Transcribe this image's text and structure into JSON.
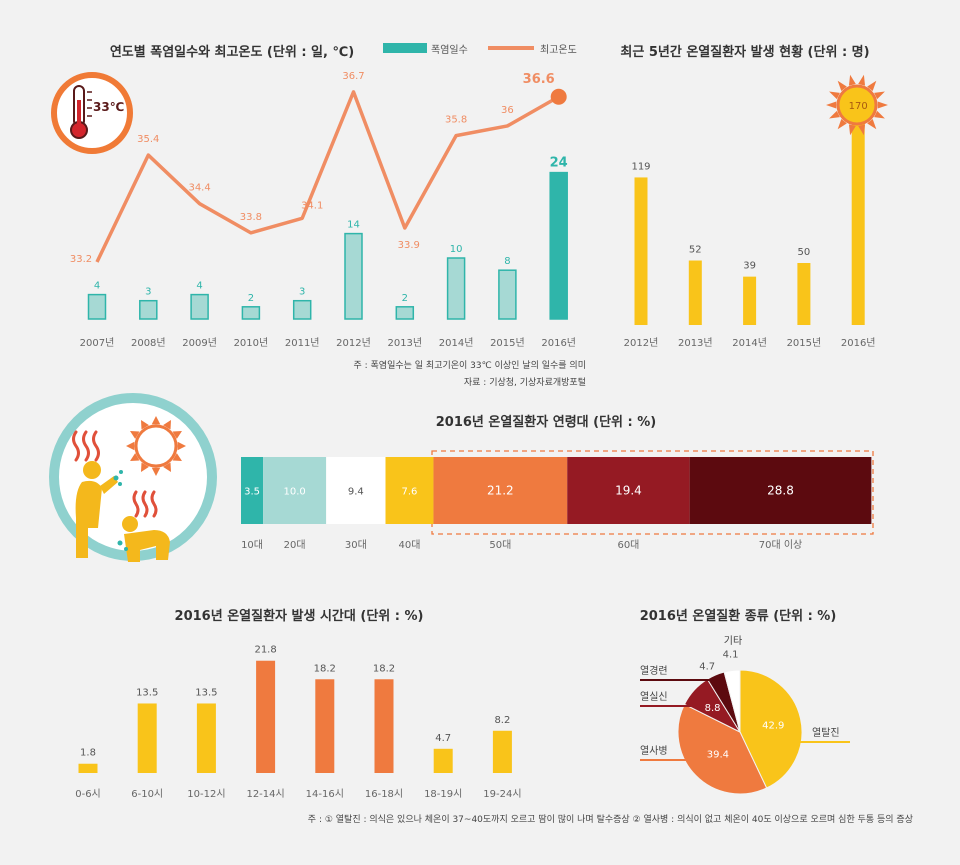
{
  "colors": {
    "teal": "#2fb5aa",
    "teal_light": "#a6d9d4",
    "orange_line": "#f08d63",
    "yellow": "#f9c41a",
    "orange": "#ef7a3f",
    "red": "#951a23",
    "dark_red": "#5c0a0f",
    "bg": "#f2f2f2",
    "thermo_ring": "#f07a36",
    "circle_ring": "#8fd1ce"
  },
  "icons": [
    "thermometer-icon",
    "sun-icon",
    "heat-wave-icon",
    "sick-person-icon"
  ],
  "thermo_label": "33℃",
  "chart_data": [
    {
      "type": "bar+line",
      "title": "연도별 폭염일수와 최고온도 (단위 : 일, ℃)",
      "categories": [
        "2007년",
        "2008년",
        "2009년",
        "2010년",
        "2011년",
        "2012년",
        "2013년",
        "2014년",
        "2015년",
        "2016년"
      ],
      "series": [
        {
          "name": "폭염일수",
          "type": "bar",
          "values": [
            4,
            3,
            4,
            2,
            3,
            14,
            2,
            10,
            8,
            24
          ],
          "labels": [
            "4",
            "3",
            "4",
            "2",
            "3",
            "14",
            "2",
            "10",
            "8",
            "24"
          ]
        },
        {
          "name": "최고온도",
          "type": "line",
          "values": [
            33.2,
            35.4,
            34.4,
            33.8,
            34.1,
            36.7,
            33.9,
            35.8,
            36,
            36.6
          ],
          "labels": [
            "33.2",
            "35.4",
            "34.4",
            "33.8",
            "34.1",
            "36.7",
            "33.9",
            "35.8",
            "36",
            "36.6"
          ]
        }
      ],
      "legend": "top",
      "notes": [
        "주 : 폭염일수는 일 최고기온이 33℃ 이상인 날의 일수를 의미",
        "자료 : 기상청, 기상자료개방포털"
      ]
    },
    {
      "type": "bar",
      "title": "최근 5년간 온열질환자 발생 현황 (단위 : 명)",
      "categories": [
        "2012년",
        "2013년",
        "2014년",
        "2015년",
        "2016년"
      ],
      "values": [
        119,
        52,
        39,
        50,
        170
      ],
      "labels": [
        "119",
        "52",
        "39",
        "50",
        "170"
      ]
    },
    {
      "type": "stacked-bar",
      "title": "2016년 온열질환자 연령대 (단위 : %)",
      "categories": [
        "10대",
        "20대",
        "30대",
        "40대",
        "50대",
        "60대",
        "70대 이상"
      ],
      "values": [
        3.5,
        10.0,
        9.4,
        7.6,
        21.2,
        19.4,
        28.8
      ],
      "labels": [
        "3.5",
        "10.0",
        "9.4",
        "7.6",
        "21.2",
        "19.4",
        "28.8"
      ]
    },
    {
      "type": "bar",
      "title": "2016년 온열질환자 발생 시간대 (단위 : %)",
      "categories": [
        "0-6시",
        "6-10시",
        "10-12시",
        "12-14시",
        "14-16시",
        "16-18시",
        "18-19시",
        "19-24시"
      ],
      "values": [
        1.8,
        13.5,
        13.5,
        21.8,
        18.2,
        18.2,
        4.7,
        8.2
      ],
      "labels": [
        "1.8",
        "13.5",
        "13.5",
        "21.8",
        "18.2",
        "18.2",
        "4.7",
        "8.2"
      ]
    },
    {
      "type": "pie",
      "title": "2016년 온열질환 종류 (단위 : %)",
      "categories": [
        "열탈진",
        "열사병",
        "열실신",
        "열경련",
        "기타"
      ],
      "values": [
        42.9,
        39.4,
        8.8,
        4.7,
        4.1
      ],
      "labels": [
        "42.9",
        "39.4",
        "8.8",
        "4.7",
        "4.1"
      ],
      "note": "주 : ① 열탈진 : 의식은 있으나 체온이 37~40도까지 오르고 땀이 많이 나며 탈수증상  ② 열사병 : 의식이 없고 체온이 40도 이상으로 오르며 심한 두통 등의 증상"
    }
  ]
}
